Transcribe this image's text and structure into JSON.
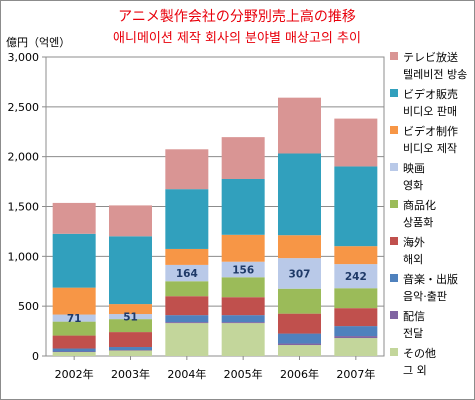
{
  "chart_data": {
    "type": "bar",
    "stacked": true,
    "title": "アニメ製作会社の分野別売上高の推移",
    "subtitle": "애니메이션 제작 회사의 분야별 매상고의 추이",
    "ylabel": "億円（억엔）",
    "ylim": [
      0,
      3000
    ],
    "yticks": [
      "0",
      "500",
      "1,000",
      "1,500",
      "2,000",
      "2,500",
      "3,000"
    ],
    "grid": true,
    "legend_position": "right",
    "categories": [
      "2002年",
      "2003年",
      "2004年",
      "2005年",
      "2006年",
      "2007年"
    ],
    "series": [
      {
        "name": "その他",
        "name_ko": "그 외",
        "color": "#c3d69b",
        "values": [
          40,
          55,
          330,
          330,
          110,
          180
        ]
      },
      {
        "name": "配信",
        "name_ko": "전달",
        "color": "#8064a2",
        "values": [
          5,
          5,
          10,
          10,
          15,
          20
        ]
      },
      {
        "name": "音楽・出版",
        "name_ko": "음악·출판",
        "color": "#4f81bd",
        "values": [
          30,
          30,
          70,
          70,
          100,
          100
        ]
      },
      {
        "name": "海外",
        "name_ko": "해외",
        "color": "#c0504d",
        "values": [
          130,
          150,
          190,
          180,
          200,
          180
        ]
      },
      {
        "name": "商品化",
        "name_ko": "상품화",
        "color": "#9bbb59",
        "values": [
          140,
          130,
          150,
          200,
          250,
          200
        ]
      },
      {
        "name": "映画",
        "name_ko": "영화",
        "color": "#b9c9e8",
        "values": [
          71,
          51,
          164,
          156,
          307,
          242
        ]
      },
      {
        "name": "ビデオ制作",
        "name_ko": "비디오 제작",
        "color": "#f79646",
        "values": [
          270,
          100,
          160,
          270,
          230,
          180
        ]
      },
      {
        "name": "ビデオ販売",
        "name_ko": "비디오 판매",
        "color": "#31a0bd",
        "values": [
          540,
          680,
          600,
          560,
          820,
          800
        ]
      },
      {
        "name": "テレビ放送",
        "name_ko": "텔레비전 방송",
        "color": "#d99594",
        "values": [
          310,
          310,
          400,
          420,
          560,
          480
        ]
      }
    ],
    "data_labels": {
      "series": "映画",
      "values": [
        "71",
        "51",
        "164",
        "156",
        "307",
        "242"
      ]
    }
  }
}
